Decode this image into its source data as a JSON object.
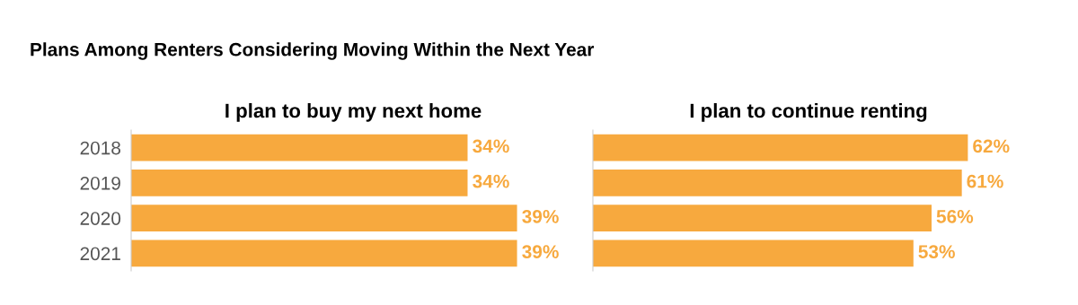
{
  "chart_data": [
    {
      "type": "bar",
      "orientation": "horizontal",
      "title": "Plans Among Renters Considering Moving Within the Next Year",
      "subtitle": "I plan to buy my next home",
      "categories": [
        "2018",
        "2019",
        "2020",
        "2021"
      ],
      "values": [
        34,
        34,
        39,
        39
      ],
      "value_labels": [
        "34%",
        "34%",
        "39%",
        "39%"
      ],
      "color": "#f7a93e",
      "tick_labels": "y",
      "grid": false,
      "legend": false
    },
    {
      "type": "bar",
      "orientation": "horizontal",
      "subtitle": "I plan to continue renting",
      "categories": [
        "2018",
        "2019",
        "2020",
        "2021"
      ],
      "values": [
        62,
        61,
        56,
        53
      ],
      "value_labels": [
        "62%",
        "61%",
        "56%",
        "53%"
      ],
      "color": "#f7a93e",
      "tick_labels": false,
      "grid": false,
      "legend": false
    }
  ]
}
